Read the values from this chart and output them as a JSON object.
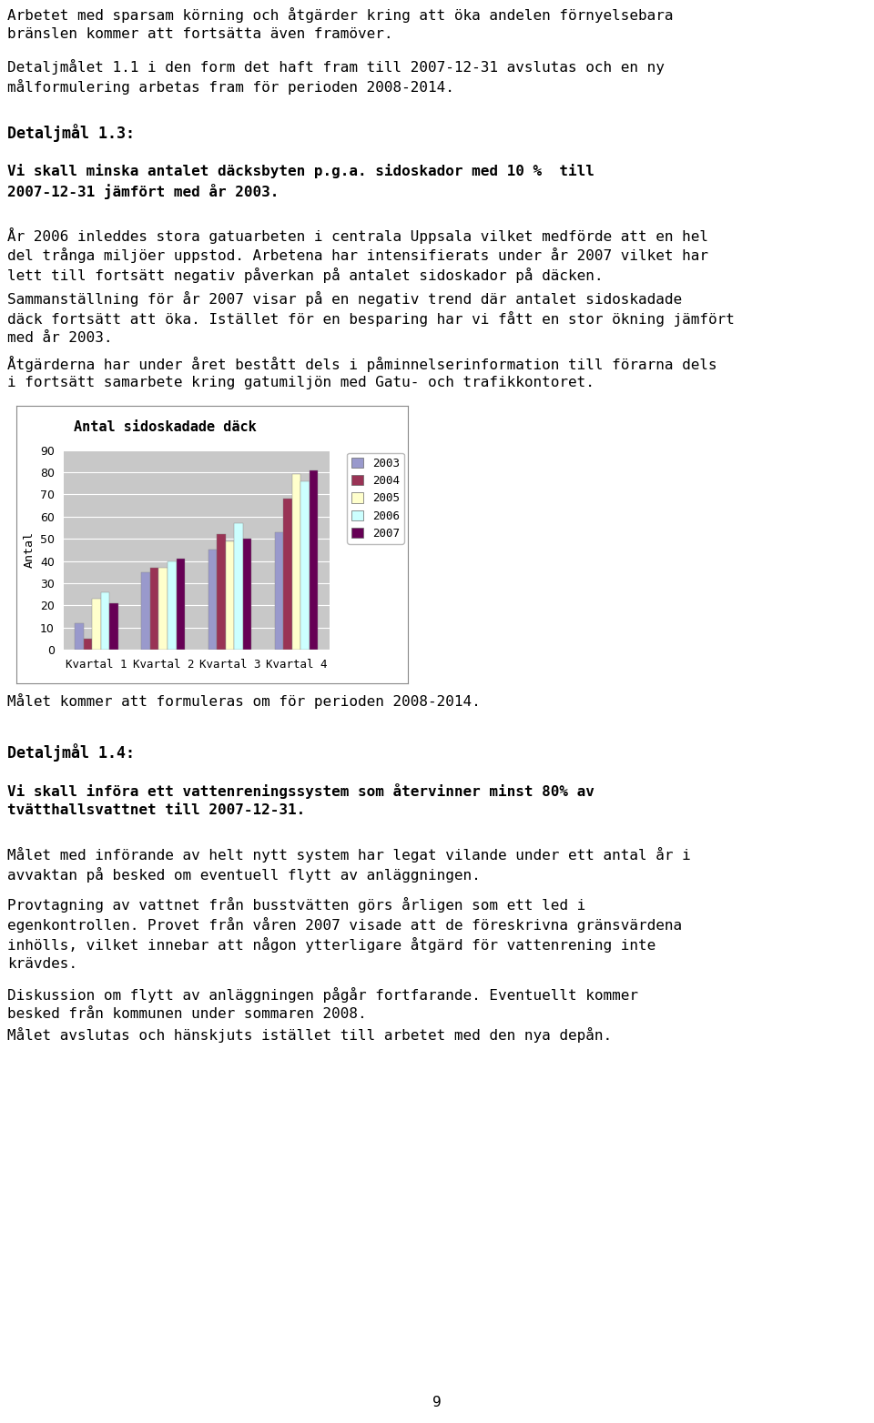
{
  "title": "Antal sidoskadade däck",
  "ylabel": "Antal",
  "categories": [
    "Kvartal 1",
    "Kvartal 2",
    "Kvartal 3",
    "Kvartal 4"
  ],
  "series": {
    "2003": [
      12,
      35,
      45,
      53
    ],
    "2004": [
      5,
      37,
      52,
      68
    ],
    "2005": [
      23,
      37,
      49,
      79
    ],
    "2006": [
      26,
      40,
      57,
      76
    ],
    "2007": [
      21,
      41,
      50,
      81
    ]
  },
  "colors": {
    "2003": "#9999cc",
    "2004": "#993355",
    "2005": "#ffffcc",
    "2006": "#ccffff",
    "2007": "#660055"
  },
  "ylim": [
    0,
    90
  ],
  "yticks": [
    0,
    10,
    20,
    30,
    40,
    50,
    60,
    70,
    80,
    90
  ],
  "legend_years": [
    "2003",
    "2004",
    "2005",
    "2006",
    "2007"
  ],
  "chart_bg": "#c8c8c8",
  "page_bg": "#ffffff",
  "green_bg": "#ccffcc",
  "body_fs": 11.5,
  "bold_fs": 11.5,
  "heading_fs": 12.0,
  "chart_title_fs": 11.0,
  "tick_fs": 9.0,
  "legend_fs": 9.0,
  "ylabel_fs": 9.5,
  "page_number": "9",
  "line1": "Arbetet med sparsam körning och åtgärder kring att öka andelen förnyelsebara",
  "line2": "bränslen kommer att fortsätta även framöver.",
  "line3": "Detaljmålet 1.1 i den form det haft fram till 2007-12-31 avslutas och en ny",
  "line4": "målformulering arbetas fram för perioden 2008-2014.",
  "heading1": "Detaljmål 1.3:",
  "green1a": "Vi skall minska antalet däcksbyten p.g.a. sidoskador med 10 %  till",
  "green1b": "2007-12-31 jämfört med år 2003.",
  "body1": [
    "År 2006 inleddes stora gatuarbeten i centrala Uppsala vilket medförde att en hel",
    "del trånga miljöer uppstod. Arbetena har intensifierats under år 2007 vilket har",
    "lett till fortsätt negativ påverkan på antalet sidoskador på däcken.",
    "Sammanställning för år 2007 visar på en negativ trend där antalet sidoskadade",
    "däck fortsätt att öka. Istället för en besparing har vi fått en stor ökning jämfört",
    "med år 2003.",
    "Åtgärderna har under året bestått dels i påminnelserinformation till förarna dels",
    "i fortsätt samarbete kring gatumiljön med Gatu- och trafikkontoret."
  ],
  "after_chart": "Målet kommer att formuleras om för perioden 2008-2014.",
  "heading2": "Detaljmål 1.4:",
  "green2a": "Vi skall införa ett vattenreningssystem som återvinner minst 80% av",
  "green2b": "tvätthallsvattnet till 2007-12-31.",
  "body2": [
    "Målet med införande av helt nytt system har legat vilande under ett antal år i",
    "avvaktan på besked om eventuell flytt av anläggningen.",
    "",
    "Provtagning av vattnet från busstvätten görs årligen som ett led i",
    "egenkontrollen. Provet från våren 2007 visade att de föreskrivna gränsvärdena",
    "inhölls, vilket innebar att någon ytterligare åtgärd för vattenrening inte",
    "krävdes.",
    "",
    "Diskussion om flytt av anläggningen pågår fortfarande. Eventuellt kommer",
    "besked från kommunen under sommaren 2008.",
    "Målet avslutas och hänskjuts istället till arbetet med den nya depån."
  ]
}
